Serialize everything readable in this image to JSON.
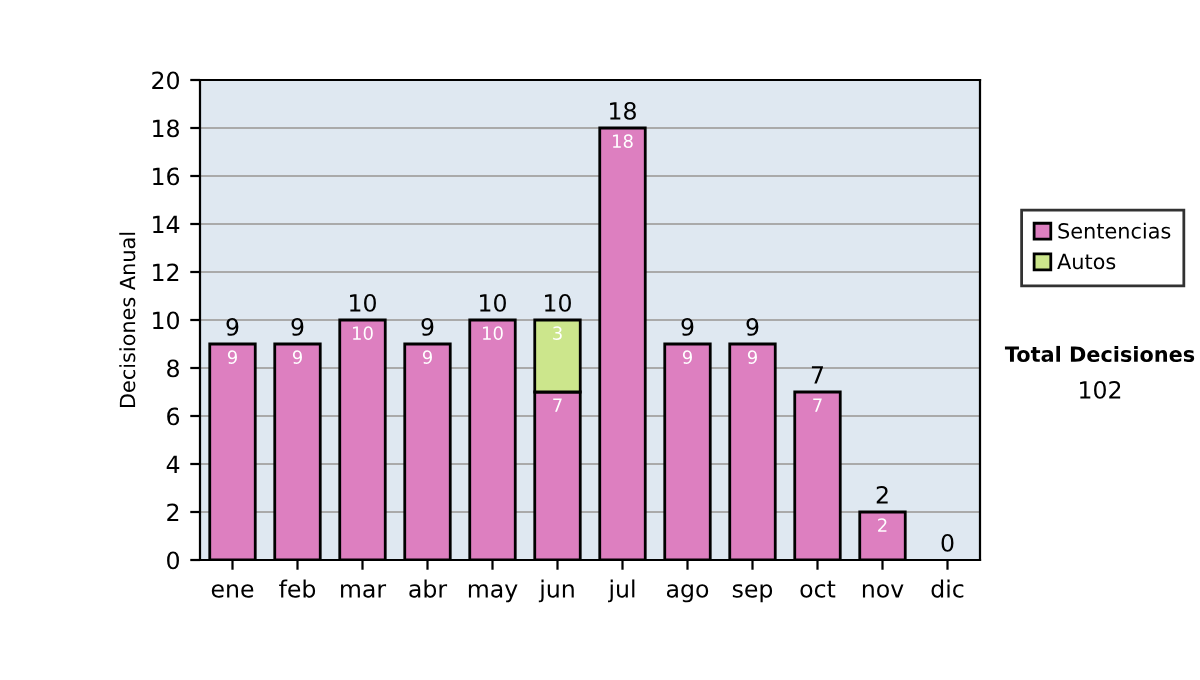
{
  "chart_data": {
    "type": "bar",
    "stacked": true,
    "ylabel": "Decisiones Anual",
    "categories": [
      "ene",
      "feb",
      "mar",
      "abr",
      "may",
      "jun",
      "jul",
      "ago",
      "sep",
      "oct",
      "nov",
      "dic"
    ],
    "series": [
      {
        "name": "Sentencias",
        "color": "#dd7fc0",
        "values": [
          9,
          9,
          10,
          9,
          10,
          7,
          18,
          9,
          9,
          7,
          2,
          0
        ],
        "value_labels": [
          "9",
          "9",
          "10",
          "9",
          "10",
          "7",
          "18",
          "9",
          "9",
          "7",
          "2",
          null
        ]
      },
      {
        "name": "Autos",
        "color": "#cce68c",
        "values": [
          0,
          0,
          0,
          0,
          0,
          3,
          0,
          0,
          0,
          0,
          0,
          0
        ],
        "value_labels": [
          null,
          null,
          null,
          null,
          null,
          "3",
          null,
          null,
          null,
          null,
          null,
          null
        ]
      }
    ],
    "totals": [
      "9",
      "9",
      "10",
      "9",
      "10",
      "10",
      "18",
      "9",
      "9",
      "7",
      "2",
      "0"
    ],
    "ylim": [
      0,
      20
    ],
    "yticks": [
      0,
      2,
      4,
      6,
      8,
      10,
      12,
      14,
      16,
      18,
      20
    ],
    "grid": "y",
    "legend": "right",
    "annotations": [
      "Total Decisiones",
      "102"
    ]
  }
}
